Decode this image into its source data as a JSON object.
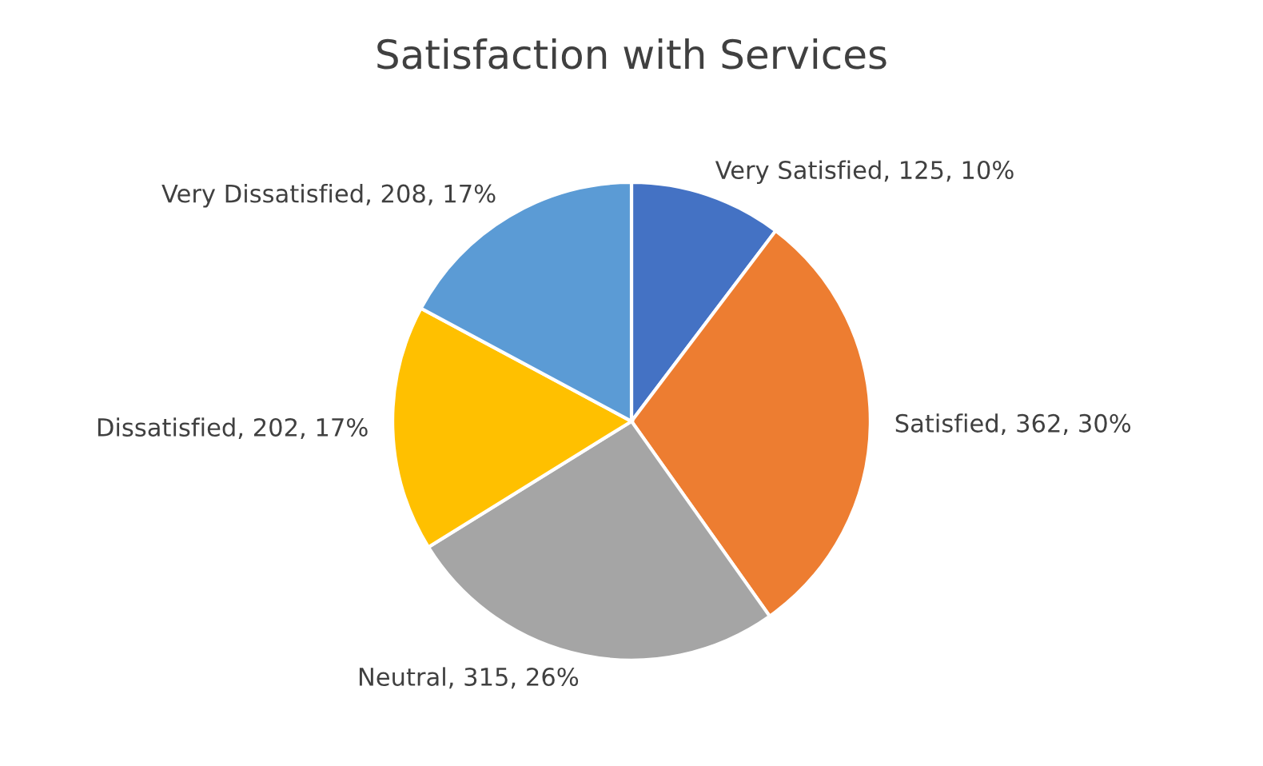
{
  "chart_data": {
    "type": "pie",
    "title": "Satisfaction with Services",
    "categories": [
      "Very Satisfied",
      "Satisfied",
      "Neutral",
      "Dissatisfied",
      "Very Dissatisfied"
    ],
    "values": [
      125,
      362,
      315,
      202,
      208
    ],
    "value_labels": [
      ", 125, 10%",
      ", 362, 30%",
      ", 315, 26%",
      ", 202, 17%",
      ", 208, 17%"
    ],
    "colors": [
      "#4472c4",
      "#ed7d31",
      "#a5a5a5",
      "#ffc000",
      "#5b9bd5"
    ],
    "legend": false
  }
}
